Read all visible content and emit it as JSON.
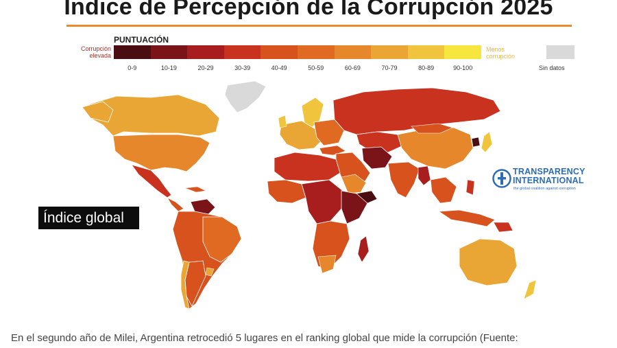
{
  "title": "Índice de Percepción de la Corrupción 2025",
  "legend": {
    "heading": "PUNTUACIÓN",
    "high_label_line1": "Corrupción",
    "high_label_line2": "elevada",
    "low_label_line1": "Menos",
    "low_label_line2": "corrupción",
    "ranges": [
      "0-9",
      "10-19",
      "20-29",
      "30-39",
      "40-49",
      "50-59",
      "60-69",
      "70-79",
      "80-89",
      "90-100"
    ],
    "gradient_colors": [
      "#4a0d12",
      "#7a1418",
      "#a81e1e",
      "#c9321e",
      "#d8521e",
      "#e06a22",
      "#e5872a",
      "#e9a634",
      "#f0c43d",
      "#f7e63d"
    ],
    "no_data_label": "Sin datos",
    "no_data_color": "#d9d9d9"
  },
  "logo": {
    "name_line1": "TRANSPARENCY",
    "name_line2": "INTERNATIONAL",
    "tagline": "the global coalition against corruption",
    "color": "#2d6db5"
  },
  "badge_text": "Índice global",
  "caption": "En el segundo año de Milei, Argentina retrocedió 5 lugares en el ranking global que mide la corrupción (Fuente:"
}
